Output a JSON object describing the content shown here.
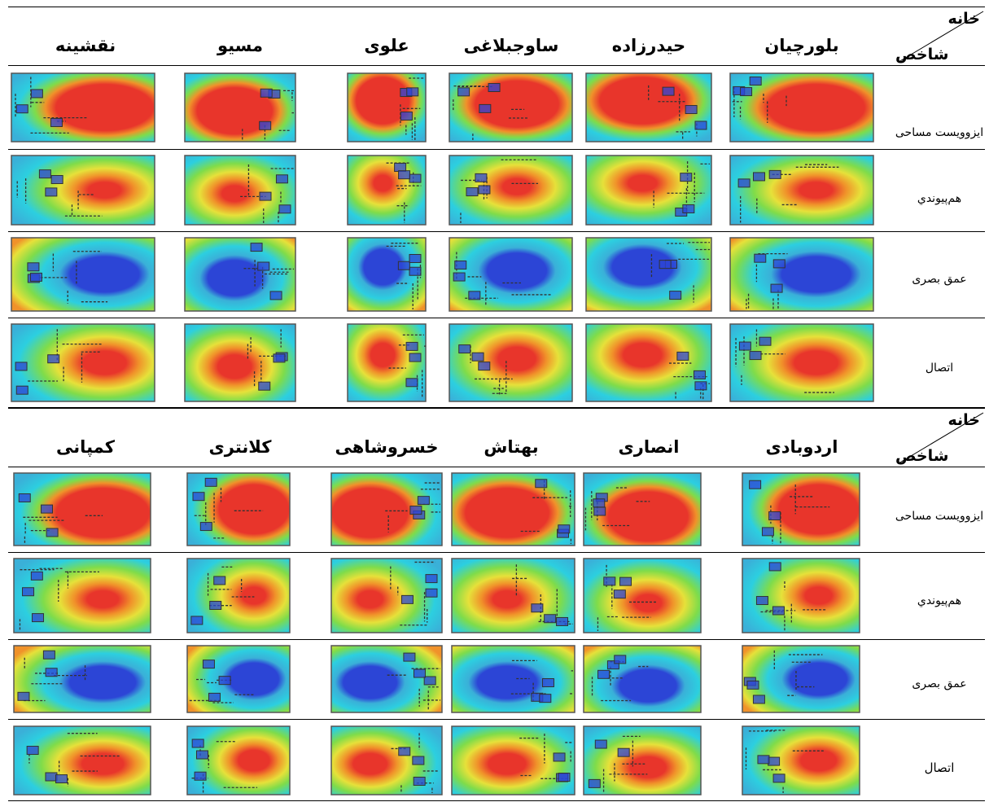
{
  "corner": {
    "top": "خانه",
    "bottom": "شاخص"
  },
  "sections": [
    {
      "houses": [
        "بلورچیان",
        "حیدرزاده",
        "ساوجبلاغی",
        "علوی",
        "مسیو",
        "نقشینه"
      ],
      "measures": [
        "ایزوویست مساحی",
        "هم‌پیوندي",
        "عمق بصری",
        "اتصال"
      ]
    },
    {
      "houses": [
        "اردوبادی",
        "انصاری",
        "بهتاش",
        "خسروشاهی",
        "کلانتری",
        "کمپانی"
      ],
      "measures": [
        "ایزوویست مساحی",
        "هم‌پیوندي",
        "عمق بصری",
        "اتصال"
      ]
    }
  ],
  "colors": {
    "red": "#e8352b",
    "orange": "#f0922a",
    "yellow": "#e6e13a",
    "green": "#7fdc4a",
    "cyan": "#2ccfe0",
    "teal": "#3ab0d8",
    "blue": "#2c45d6",
    "wall": "#333333"
  }
}
